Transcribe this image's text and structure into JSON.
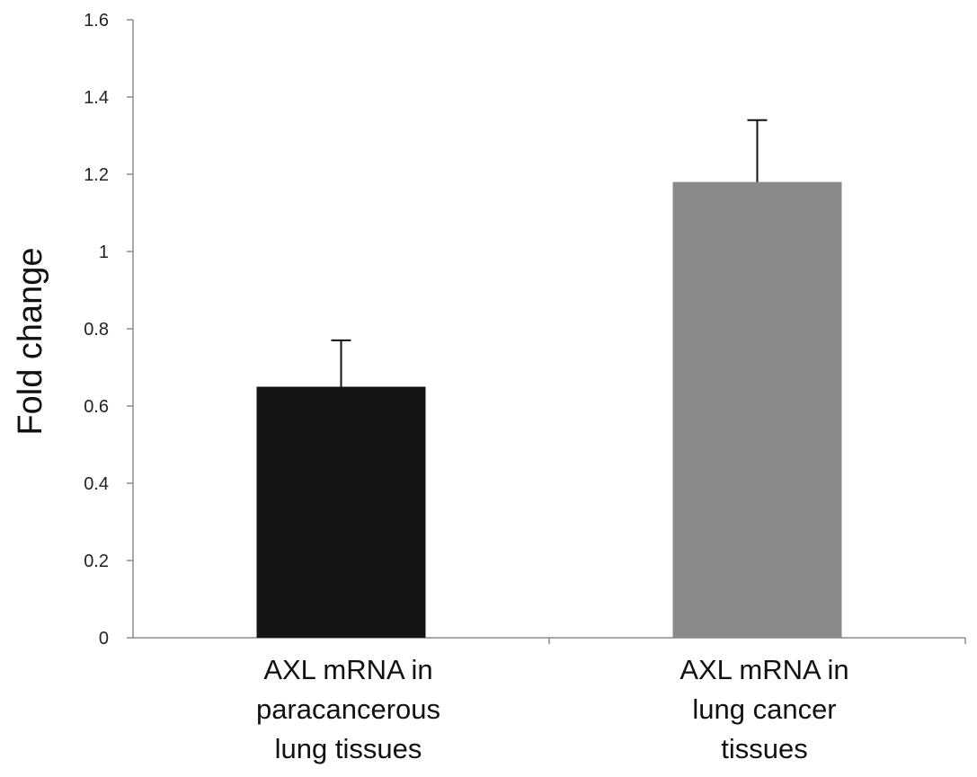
{
  "chart_data": {
    "type": "bar",
    "categories": [
      [
        "AXL mRNA in",
        "paracancerous",
        "lung tissues"
      ],
      [
        "AXL mRNA in",
        "lung cancer",
        "tissues"
      ]
    ],
    "values": [
      0.65,
      1.18
    ],
    "error_plus": [
      0.12,
      0.16
    ],
    "bar_colors": [
      "#141414",
      "#8a8a8a"
    ],
    "ylabel": "Fold change",
    "xlabel": "",
    "title": "",
    "ylim": [
      0,
      1.6
    ],
    "yticks": [
      0,
      0.2,
      0.4,
      0.6,
      0.8,
      1,
      1.2,
      1.4,
      1.6
    ],
    "ytick_labels": [
      "0",
      "0.2",
      "0.4",
      "0.6",
      "0.8",
      "1",
      "1.2",
      "1.4",
      "1.6"
    ],
    "grid": false,
    "legend": "none"
  }
}
